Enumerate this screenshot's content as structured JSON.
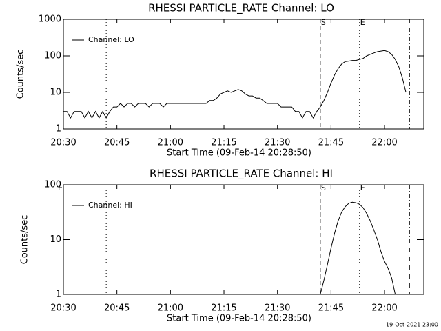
{
  "chart_data": [
    {
      "type": "line",
      "title": "RHESSI PARTICLE_RATE Channel: LO",
      "xlabel": "Start Time (09-Feb-14 20:28:50)",
      "ylabel": "Counts/sec",
      "x": [
        "20:30",
        "20:31",
        "20:32",
        "20:33",
        "20:34",
        "20:35",
        "20:36",
        "20:37",
        "20:38",
        "20:39",
        "20:40",
        "20:41",
        "20:42",
        "20:43",
        "20:44",
        "20:45",
        "20:46",
        "20:47",
        "20:48",
        "20:49",
        "20:50",
        "20:51",
        "20:52",
        "20:53",
        "20:54",
        "20:55",
        "20:56",
        "20:57",
        "20:58",
        "20:59",
        "21:00",
        "21:01",
        "21:02",
        "21:03",
        "21:04",
        "21:05",
        "21:06",
        "21:07",
        "21:08",
        "21:09",
        "21:10",
        "21:11",
        "21:12",
        "21:13",
        "21:14",
        "21:15",
        "21:16",
        "21:17",
        "21:18",
        "21:19",
        "21:20",
        "21:21",
        "21:22",
        "21:23",
        "21:24",
        "21:25",
        "21:26",
        "21:27",
        "21:28",
        "21:29",
        "21:30",
        "21:31",
        "21:32",
        "21:33",
        "21:34",
        "21:35",
        "21:36",
        "21:37",
        "21:38",
        "21:39",
        "21:40",
        "21:41",
        "21:42",
        "21:43",
        "21:44",
        "21:45",
        "21:46",
        "21:47",
        "21:48",
        "21:49",
        "21:50",
        "21:51",
        "21:52",
        "21:53",
        "21:54",
        "21:55",
        "21:56",
        "21:57",
        "21:58",
        "21:59",
        "22:00",
        "22:01",
        "22:02",
        "22:03",
        "22:04",
        "22:05",
        "22:06"
      ],
      "series": [
        {
          "name": "Channel: LO",
          "color": "#000000",
          "values": [
            3,
            3,
            2,
            3,
            3,
            3,
            2,
            3,
            2,
            3,
            2,
            3,
            2,
            3,
            4,
            4,
            5,
            4,
            5,
            5,
            4,
            5,
            5,
            5,
            4,
            5,
            5,
            5,
            4,
            5,
            5,
            5,
            5,
            5,
            5,
            5,
            5,
            5,
            5,
            5,
            5,
            6,
            6,
            7,
            9,
            10,
            11,
            10,
            11,
            12,
            11,
            9,
            8,
            8,
            7,
            7,
            6,
            5,
            5,
            5,
            5,
            4,
            4,
            4,
            4,
            3,
            3,
            2,
            3,
            3,
            2,
            3,
            4,
            6,
            10,
            18,
            30,
            45,
            60,
            70,
            72,
            75,
            75,
            80,
            85,
            100,
            110,
            120,
            130,
            135,
            140,
            130,
            110,
            80,
            50,
            25,
            10
          ]
        }
      ],
      "xlim": [
        "20:30",
        "22:11"
      ],
      "xticks": [
        "20:30",
        "20:45",
        "21:00",
        "21:15",
        "21:30",
        "21:45",
        "22:00"
      ],
      "ylim": [
        1,
        1000
      ],
      "yticks": [
        1,
        10,
        100,
        1000
      ],
      "log_y": true,
      "legend": "upper left",
      "markers": [
        {
          "x": "20:42",
          "style": "dotted"
        },
        {
          "x": "21:42",
          "style": "dashed",
          "label": "S"
        },
        {
          "x": "21:53",
          "style": "dotted",
          "label": "E"
        },
        {
          "x": "22:07",
          "style": "dashdot"
        }
      ]
    },
    {
      "type": "line",
      "title": "RHESSI PARTICLE_RATE Channel: HI",
      "xlabel": "Start Time (09-Feb-14 20:28:50)",
      "ylabel": "Counts/sec",
      "x": [
        "21:42",
        "21:43",
        "21:44",
        "21:45",
        "21:46",
        "21:47",
        "21:48",
        "21:49",
        "21:50",
        "21:51",
        "21:52",
        "21:53",
        "21:54",
        "21:55",
        "21:56",
        "21:57",
        "21:58",
        "21:59",
        "22:00",
        "22:01",
        "22:02",
        "22:03"
      ],
      "series": [
        {
          "name": "Channel: HI",
          "color": "#000000",
          "values": [
            1,
            1.8,
            3.5,
            7,
            13,
            22,
            32,
            40,
            46,
            48,
            47,
            44,
            38,
            30,
            22,
            15,
            10,
            6,
            4,
            3,
            2,
            1
          ]
        }
      ],
      "xlim": [
        "20:30",
        "22:11"
      ],
      "xticks": [
        "20:30",
        "20:45",
        "21:00",
        "21:15",
        "21:30",
        "21:45",
        "22:00"
      ],
      "ylim": [
        1,
        100
      ],
      "yticks": [
        1,
        10,
        100
      ],
      "log_y": true,
      "legend": "upper left",
      "markers": [
        {
          "x": "20:30",
          "style": "none",
          "label": "E"
        },
        {
          "x": "20:42",
          "style": "dotted"
        },
        {
          "x": "21:42",
          "style": "dashed",
          "label": "S"
        },
        {
          "x": "21:53",
          "style": "dotted",
          "label": "E"
        },
        {
          "x": "22:07",
          "style": "dashdot"
        }
      ]
    }
  ],
  "footer": "19-Oct-2021 23:00"
}
